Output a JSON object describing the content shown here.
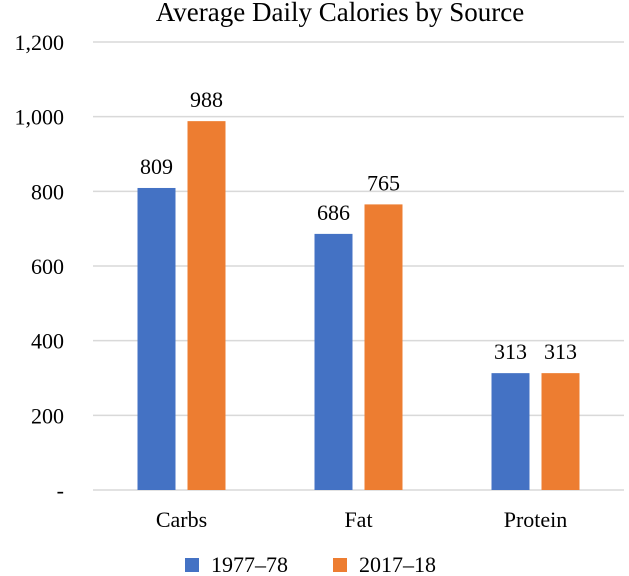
{
  "chart_data": {
    "type": "bar",
    "title": "Average Daily Calories by Source",
    "xlabel": "",
    "ylabel": "",
    "categories": [
      "Carbs",
      "Fat",
      "Protein"
    ],
    "series": [
      {
        "name": "1977–78",
        "values": [
          809,
          686,
          313
        ],
        "color": "#4472c4"
      },
      {
        "name": "2017–18",
        "values": [
          988,
          765,
          313
        ],
        "color": "#ed7d31"
      }
    ],
    "data_labels": [
      [
        "809",
        "686",
        "313"
      ],
      [
        "988",
        "765",
        "313"
      ]
    ],
    "ylim": [
      0,
      1200
    ],
    "yticks": [
      0,
      200,
      400,
      600,
      800,
      1000,
      1200
    ],
    "ytick_labels": [
      "-",
      "200",
      "400",
      "600",
      "800",
      "1,000",
      "1,200"
    ],
    "grid": true,
    "legend_position": "bottom"
  }
}
